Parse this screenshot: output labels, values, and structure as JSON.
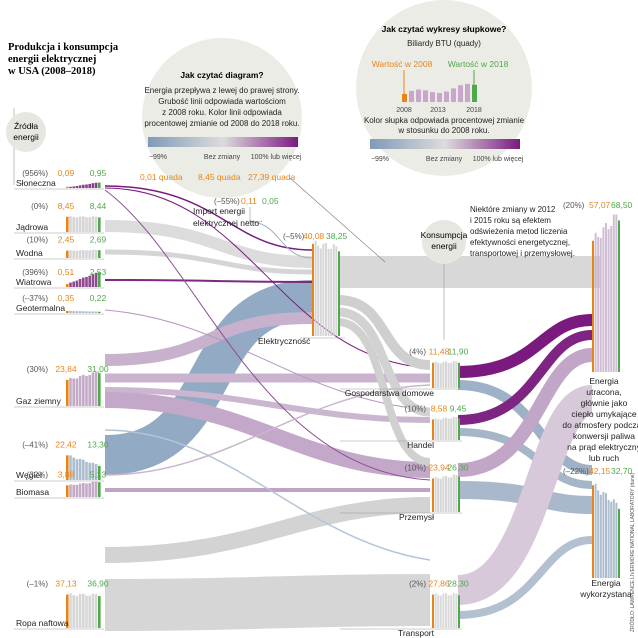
{
  "title": "Produkcja i konsumpcja energii elektrycznej w USA (2008–2018)",
  "title_lines": [
    "Produkcja i konsumpcja",
    "energii elektrycznej",
    "w USA (2008–2018)"
  ],
  "sources_heading_lines": [
    "Źródła",
    "energii"
  ],
  "consumption_heading_lines": [
    "Konsumpcja",
    "energii"
  ],
  "howto_diagram": {
    "heading": "Jak czytać diagram?",
    "lines": [
      "Energia przepływa z lewej do prawej strony.",
      "Grubość linii odpowiada wartościom",
      "z 2008 roku. Kolor linii odpowiada",
      "procentowej zmianie od 2008 do 2018 roku."
    ],
    "scale": [
      "−99%",
      "Bez zmiany",
      "100% lub więcej"
    ]
  },
  "howto_bars": {
    "heading": "Jak czytać wykresy słupkowe?",
    "unit": "Biliardy BTU (quady)",
    "label_2008": "Wartość w 2008",
    "label_2018": "Wartość w 2018",
    "years": [
      "2008",
      "2013",
      "2018"
    ],
    "lines": [
      "Kolor słupka odpowiada procentowej zmianie",
      "w stosunku do 2008 roku."
    ],
    "scale": [
      "−99%",
      "Bez zmiany",
      "100% lub więcej"
    ]
  },
  "flow_labels": [
    "0,01 quada",
    "8,45 quada",
    "27,39 quada"
  ],
  "sources": [
    {
      "name": "Słoneczna",
      "pct": "(956%)",
      "v2008": "0,09",
      "v2018": "0,95"
    },
    {
      "name": "Jądrowa",
      "pct": "(0%)",
      "v2008": "8,45",
      "v2018": "8,44"
    },
    {
      "name": "Wodna",
      "pct": "(10%)",
      "v2008": "2,45",
      "v2018": "2,69"
    },
    {
      "name": "Wiatrowa",
      "pct": "(396%)",
      "v2008": "0,51",
      "v2018": "2,53"
    },
    {
      "name": "Geotermalna",
      "pct": "(–37%)",
      "v2008": "0,35",
      "v2018": "0,22"
    },
    {
      "name": "Gaz ziemny",
      "pct": "(30%)",
      "v2008": "23,84",
      "v2018": "31,00"
    },
    {
      "name": "Węgiel",
      "pct": "(–41%)",
      "v2008": "22,42",
      "v2018": "13,30"
    },
    {
      "name": "Biomasa",
      "pct": "(32%)",
      "v2008": "3,88",
      "v2018": "5,13"
    },
    {
      "name": "Ropa naftowa",
      "pct": "(–1%)",
      "v2008": "37,13",
      "v2018": "36,90"
    }
  ],
  "import_node": {
    "name_lines": [
      "Import energii",
      "elektrycznej netto"
    ],
    "pct": "(–55%)",
    "v2008": "0,11",
    "v2018": "0,05"
  },
  "electricity": {
    "name": "Elektryczność",
    "pct": "(–5%)",
    "v2008": "40,08",
    "v2018": "38,25"
  },
  "consumers": [
    {
      "name": "Gospodarstwa domowe",
      "pct": "(4%)",
      "v2008": "11,48",
      "v2018": "11,90"
    },
    {
      "name": "Handel",
      "pct": "(10%)",
      "v2008": "8,58",
      "v2018": "9,45"
    },
    {
      "name": "Przemysł",
      "pct": "(10%)",
      "v2008": "23,94",
      "v2018": "26,30"
    },
    {
      "name": "Transport",
      "pct": "(2%)",
      "v2008": "27,86",
      "v2018": "28,30"
    }
  ],
  "lost": {
    "pct": "(20%)",
    "v2008": "57,07",
    "v2018": "68,50",
    "lines": [
      "Energia",
      "utracona,",
      "głównie jako",
      "ciepło umykające",
      "do atmosfery podczas",
      "konwersji paliwa",
      "na prąd elektryczny",
      "lub ruch"
    ]
  },
  "used": {
    "pct": "(–22%)",
    "v2008": "42,15",
    "v2018": "32,70",
    "lines": [
      "Energia",
      "wykorzystana"
    ]
  },
  "note_lines": [
    "Niektóre zmiany w 2012",
    "i 2015 roku są efektem",
    "odświeżenia metod liczenia",
    "efektywności energetycznej,",
    "transportowej i przemysłowej."
  ],
  "credit": "ŹRÓDŁO: LAWRENCE LIVERMORE NATIONAL LABORATORY (dane)",
  "colors": {
    "decrease": "#7f9ab8",
    "neutral": "#d9d9d9",
    "increase": "#7a1a7f",
    "v2008": "#e8851a",
    "v2018": "#4fa84a"
  }
}
